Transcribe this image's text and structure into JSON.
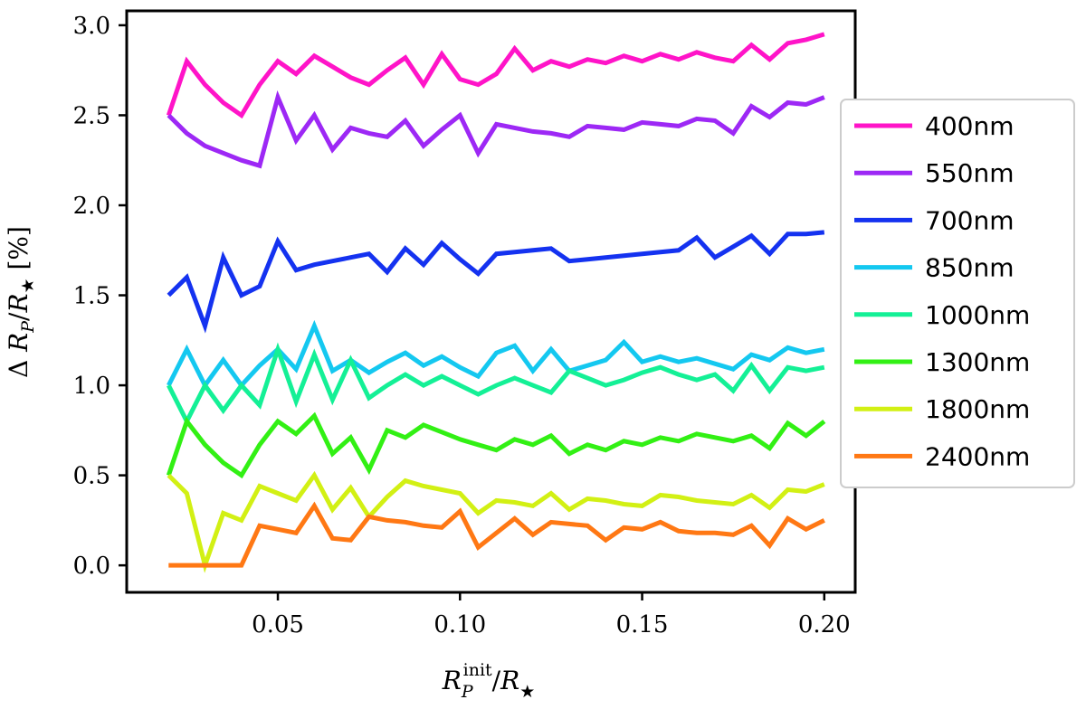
{
  "chart_data": {
    "type": "line",
    "title": "",
    "xlabel": "R_P^init / R_★",
    "ylabel": "Δ R_P / R_★ [%]",
    "xlim": [
      0.0085,
      0.2085
    ],
    "ylim": [
      -0.15,
      3.08
    ],
    "xticks": [
      0.05,
      0.1,
      0.15,
      0.2
    ],
    "xtick_labels": [
      "0.05",
      "0.10",
      "0.15",
      "0.20"
    ],
    "yticks": [
      0.0,
      0.5,
      1.0,
      1.5,
      2.0,
      2.5,
      3.0
    ],
    "ytick_labels": [
      "0.0",
      "0.5",
      "1.0",
      "1.5",
      "2.0",
      "2.5",
      "3.0"
    ],
    "legend_position": "right",
    "x": [
      0.02,
      0.025,
      0.03,
      0.035,
      0.04,
      0.045,
      0.05,
      0.055,
      0.06,
      0.065,
      0.07,
      0.075,
      0.08,
      0.085,
      0.09,
      0.095,
      0.1,
      0.105,
      0.11,
      0.115,
      0.12,
      0.125,
      0.13,
      0.135,
      0.14,
      0.145,
      0.15,
      0.155,
      0.16,
      0.165,
      0.17,
      0.175,
      0.18,
      0.185,
      0.19,
      0.195,
      0.2
    ],
    "series": [
      {
        "name": "400nm",
        "color": "#ff14c8",
        "values": [
          2.5,
          2.8,
          2.67,
          2.57,
          2.5,
          2.67,
          2.8,
          2.73,
          2.83,
          2.77,
          2.71,
          2.67,
          2.75,
          2.82,
          2.67,
          2.84,
          2.7,
          2.67,
          2.73,
          2.87,
          2.75,
          2.8,
          2.77,
          2.81,
          2.79,
          2.83,
          2.8,
          2.84,
          2.81,
          2.85,
          2.82,
          2.8,
          2.89,
          2.81,
          2.9,
          2.92,
          2.95
        ]
      },
      {
        "name": "550nm",
        "color": "#9d28f5",
        "values": [
          2.5,
          2.4,
          2.33,
          2.29,
          2.25,
          2.22,
          2.6,
          2.36,
          2.5,
          2.31,
          2.43,
          2.4,
          2.38,
          2.47,
          2.33,
          2.42,
          2.5,
          2.29,
          2.45,
          2.43,
          2.41,
          2.4,
          2.38,
          2.44,
          2.43,
          2.42,
          2.46,
          2.45,
          2.44,
          2.48,
          2.47,
          2.4,
          2.55,
          2.49,
          2.57,
          2.56,
          2.6
        ]
      },
      {
        "name": "700nm",
        "color": "#1432f0",
        "values": [
          1.5,
          1.6,
          1.33,
          1.71,
          1.5,
          1.55,
          1.8,
          1.64,
          1.67,
          1.69,
          1.71,
          1.73,
          1.63,
          1.76,
          1.67,
          1.79,
          1.7,
          1.62,
          1.73,
          1.74,
          1.75,
          1.76,
          1.69,
          1.7,
          1.71,
          1.72,
          1.73,
          1.74,
          1.75,
          1.82,
          1.71,
          1.77,
          1.83,
          1.73,
          1.84,
          1.84,
          1.85
        ]
      },
      {
        "name": "850nm",
        "color": "#14c8f0",
        "values": [
          1.0,
          1.2,
          1.0,
          1.14,
          1.0,
          1.11,
          1.2,
          1.09,
          1.33,
          1.08,
          1.14,
          1.07,
          1.13,
          1.18,
          1.11,
          1.16,
          1.1,
          1.05,
          1.18,
          1.22,
          1.08,
          1.2,
          1.08,
          1.11,
          1.14,
          1.24,
          1.13,
          1.16,
          1.13,
          1.15,
          1.12,
          1.09,
          1.17,
          1.14,
          1.21,
          1.18,
          1.2
        ]
      },
      {
        "name": "1000nm",
        "color": "#14f096",
        "values": [
          1.0,
          0.8,
          1.0,
          0.86,
          1.0,
          0.89,
          1.2,
          0.91,
          1.17,
          0.92,
          1.14,
          0.93,
          1.0,
          1.06,
          1.0,
          1.05,
          1.0,
          0.95,
          1.0,
          1.04,
          1.0,
          0.96,
          1.08,
          1.04,
          1.0,
          1.03,
          1.07,
          1.1,
          1.06,
          1.03,
          1.06,
          0.97,
          1.11,
          0.97,
          1.1,
          1.08,
          1.1
        ]
      },
      {
        "name": "1300nm",
        "color": "#32f014",
        "values": [
          0.5,
          0.8,
          0.67,
          0.57,
          0.5,
          0.67,
          0.8,
          0.73,
          0.83,
          0.62,
          0.71,
          0.53,
          0.75,
          0.71,
          0.78,
          0.74,
          0.7,
          0.67,
          0.64,
          0.7,
          0.67,
          0.72,
          0.62,
          0.67,
          0.64,
          0.69,
          0.67,
          0.71,
          0.69,
          0.73,
          0.71,
          0.69,
          0.72,
          0.65,
          0.79,
          0.72,
          0.8
        ]
      },
      {
        "name": "1800nm",
        "color": "#d2f014",
        "values": [
          0.5,
          0.4,
          0.0,
          0.29,
          0.25,
          0.44,
          0.4,
          0.36,
          0.5,
          0.31,
          0.43,
          0.27,
          0.38,
          0.47,
          0.44,
          0.42,
          0.4,
          0.29,
          0.36,
          0.35,
          0.33,
          0.4,
          0.31,
          0.37,
          0.36,
          0.34,
          0.33,
          0.39,
          0.38,
          0.36,
          0.35,
          0.34,
          0.39,
          0.32,
          0.42,
          0.41,
          0.45
        ]
      },
      {
        "name": "2400nm",
        "color": "#ff7814",
        "values": [
          0.0,
          0.0,
          0.0,
          0.0,
          0.0,
          0.22,
          0.2,
          0.18,
          0.33,
          0.15,
          0.14,
          0.27,
          0.25,
          0.24,
          0.22,
          0.21,
          0.3,
          0.1,
          0.18,
          0.26,
          0.17,
          0.24,
          0.23,
          0.22,
          0.14,
          0.21,
          0.2,
          0.24,
          0.19,
          0.18,
          0.18,
          0.17,
          0.22,
          0.11,
          0.26,
          0.2,
          0.25
        ]
      }
    ]
  }
}
